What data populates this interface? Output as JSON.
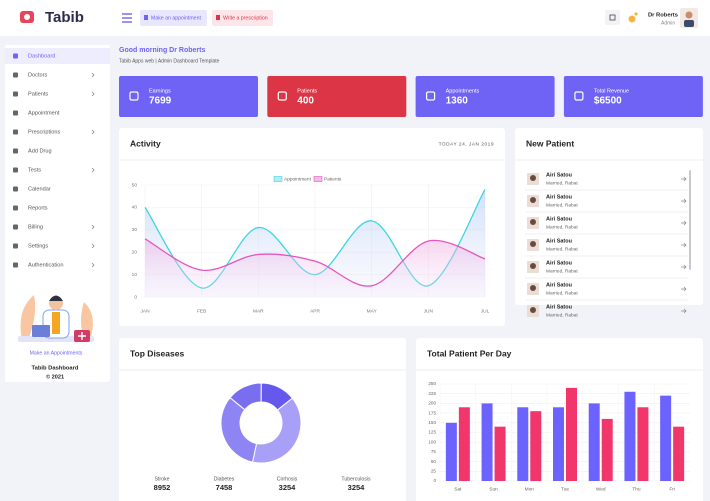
{
  "header": {
    "brand": "Tabib",
    "buttons": [
      "Make an appointment",
      "Write a prescription"
    ],
    "user": {
      "name": "Dr Roberts",
      "role": "Admin"
    }
  },
  "sidebar": {
    "menu": [
      {
        "label": "Dashboard",
        "active": true,
        "submenu": false
      },
      {
        "label": "Doctors",
        "active": false,
        "submenu": true
      },
      {
        "label": "Patients",
        "active": false,
        "submenu": true
      },
      {
        "label": "Appointment",
        "active": false,
        "submenu": false
      },
      {
        "label": "Prescriptions",
        "active": false,
        "submenu": true
      },
      {
        "label": "Add Drug",
        "active": false,
        "submenu": false
      },
      {
        "label": "Tests",
        "active": false,
        "submenu": true
      },
      {
        "label": "Calendar",
        "active": false,
        "submenu": false
      },
      {
        "label": "Reports",
        "active": false,
        "submenu": false
      },
      {
        "label": "Billing",
        "active": false,
        "submenu": true
      },
      {
        "label": "Settings",
        "active": false,
        "submenu": true
      },
      {
        "label": "Authentication",
        "active": false,
        "submenu": true
      }
    ],
    "cta": "Make an Appointments",
    "footer_title": "Tabib Dashboard",
    "footer_copy": "© 2021"
  },
  "greeting": {
    "title": "Good morning Dr Roberts",
    "subtitle": "Tabib Apps web | Admin Dashboard Template"
  },
  "stats": [
    {
      "label": "Earnings",
      "value": 7699,
      "color": "#6f63f6"
    },
    {
      "label": "Patients",
      "value": 400,
      "color": "#dc3545"
    },
    {
      "label": "Appointments",
      "value": 1360,
      "color": "#6f63f6"
    },
    {
      "label": "Total Revenue",
      "value": "$6500",
      "color": "#6f63f6"
    }
  ],
  "activity": {
    "title": "Activity",
    "date": "TODAY 24, JAN 2019",
    "chart": {
      "type": "line",
      "categories": [
        "JAN",
        "FEB",
        "MAR",
        "APR",
        "MAY",
        "JUN",
        "JUL"
      ],
      "series": [
        {
          "name": "Appointment",
          "color": "#3dd5e3",
          "values": [
            40,
            4,
            31,
            10,
            34,
            5,
            48
          ]
        },
        {
          "name": "Patients",
          "color": "#e357bd",
          "values": [
            26,
            12,
            19,
            16,
            5,
            25,
            17
          ]
        }
      ],
      "ylim": [
        0,
        50
      ],
      "yticks": [
        0,
        10,
        20,
        30,
        40,
        50
      ],
      "grid": true
    }
  },
  "new_patient": {
    "title": "New Patient",
    "patients": [
      {
        "name": "Airi Satou",
        "info": "Married, Rabat"
      },
      {
        "name": "Airi Satou",
        "info": "Married, Rabat"
      },
      {
        "name": "Airi Satou",
        "info": "Married, Rabat"
      },
      {
        "name": "Airi Satou",
        "info": "Married, Rabat"
      },
      {
        "name": "Airi Satou",
        "info": "Married, Rabat"
      },
      {
        "name": "Airi Satou",
        "info": "Married, Rabat"
      },
      {
        "name": "Airi Satou",
        "info": "Married, Rabat"
      }
    ]
  },
  "top_diseases": {
    "title": "Top Diseases",
    "chart": {
      "type": "doughnut",
      "categories": [
        "Stroke",
        "Diabetes",
        "Cirrhosis",
        "Tuberculosis"
      ],
      "values": [
        8952,
        7458,
        3254,
        3254
      ],
      "colors": [
        "#a89ff7",
        "#8f84f3",
        "#7a6ef0",
        "#6558ec"
      ]
    }
  },
  "patients_per_day": {
    "title": "Total Patient Per Day",
    "chart": {
      "type": "bar",
      "categories": [
        "Sat",
        "Sun",
        "Mon",
        "Tue",
        "Wed",
        "Thu",
        "Fri"
      ],
      "series": [
        {
          "color": "#6c63ff",
          "values": [
            150,
            200,
            190,
            190,
            200,
            230,
            220
          ]
        },
        {
          "color": "#f0366a",
          "values": [
            190,
            140,
            180,
            240,
            160,
            190,
            140
          ]
        }
      ],
      "ylim": [
        0,
        250
      ],
      "yticks": [
        0,
        25,
        50,
        75,
        100,
        125,
        150,
        175,
        200,
        225,
        250
      ],
      "grid": true
    }
  }
}
